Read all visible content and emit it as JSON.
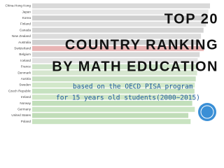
{
  "chart_data": {
    "type": "hbar",
    "title_lines": [
      "TOP 20",
      "COUNTRY RANKING",
      "BY MATH EDUCATION"
    ],
    "subtitle_lines": [
      "based on the OECD PISA program",
      "for 15 years old students(2000~2015)"
    ],
    "categories": [
      "China-Hong Kong",
      "Japan",
      "Korea",
      "Finland",
      "Canada",
      "New Zealand",
      "Australia",
      "Switzerland",
      "Belgium",
      "Iceland",
      "France",
      "Denmark",
      "Austria",
      "Sweden",
      "Czech Republic",
      "Ireland",
      "Norway",
      "Germany",
      "United States",
      "Poland"
    ],
    "values": [
      550,
      545,
      544,
      538,
      530,
      522,
      520,
      531,
      518,
      512,
      508,
      510,
      506,
      503,
      502,
      500,
      495,
      503,
      483,
      490
    ],
    "colors": [
      "#d9d9d9",
      "#e6e6e6",
      "#cfcfcf",
      "#e0e0e0",
      "#d4d4d4",
      "#dcdcdc",
      "#d0d0d0",
      "#e8b4b4",
      "#d8d8d8",
      "#e2e2e2",
      "#cde3c8",
      "#d6e6cf",
      "#c8e0c2",
      "#d2e8ca",
      "#c6e2c0",
      "#cfe6c7",
      "#c2dfbb",
      "#cbe4c4",
      "#c0ddb8",
      "#c9e3c1"
    ]
  }
}
